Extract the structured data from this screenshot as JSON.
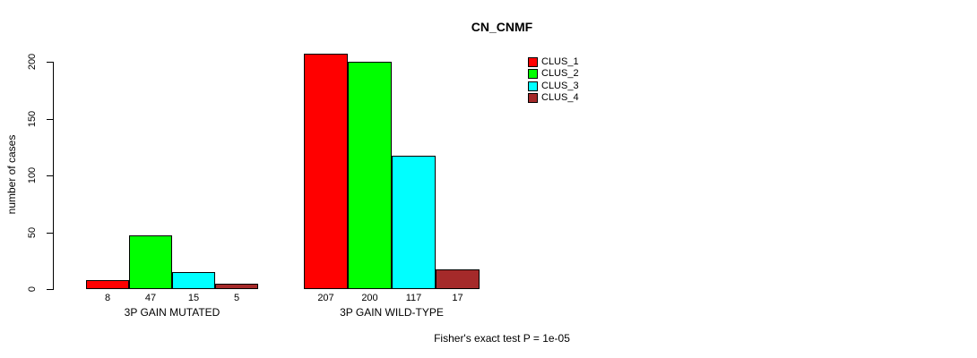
{
  "chart_data": {
    "type": "bar",
    "title": "CN_CNMF",
    "ylabel": "number of cases",
    "xlabel": "",
    "ylim": [
      0,
      200
    ],
    "yticks": [
      0,
      50,
      100,
      150,
      200
    ],
    "grid": false,
    "legend_position": "top-right",
    "categories": [
      "3P GAIN MUTATED",
      "3P GAIN WILD-TYPE"
    ],
    "series": [
      {
        "name": "CLUS_1",
        "color": "#ff0000",
        "values": [
          8,
          207
        ]
      },
      {
        "name": "CLUS_2",
        "color": "#00ff00",
        "values": [
          47,
          200
        ]
      },
      {
        "name": "CLUS_3",
        "color": "#00ffff",
        "values": [
          15,
          117
        ]
      },
      {
        "name": "CLUS_4",
        "color": "#a52a2a",
        "values": [
          5,
          17
        ]
      }
    ],
    "annotation": "Fisher's exact test P = 1e-05"
  }
}
